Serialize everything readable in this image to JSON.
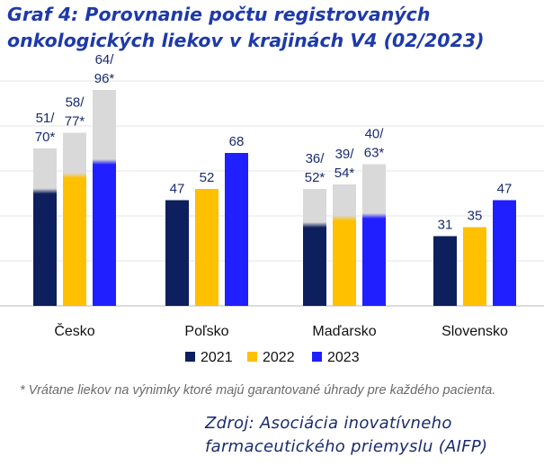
{
  "title": {
    "line1": "Graf 4: Porovnanie počtu registrovaných",
    "line2": "onkologických liekov v krajinách V4 (02/2023)"
  },
  "chart_data": {
    "type": "bar",
    "categories": [
      "Česko",
      "Poľsko",
      "Maďarsko",
      "Slovensko"
    ],
    "ylim": [
      0,
      100
    ],
    "grid": true,
    "legend_position": "bottom",
    "series": [
      {
        "name": "2021",
        "color": "#0d1f5c",
        "values": [
          51,
          47,
          36,
          31
        ],
        "totals": [
          70,
          null,
          52,
          null
        ],
        "labels": [
          [
            "51/",
            "70*"
          ],
          [
            "47"
          ],
          [
            "36/",
            "52*"
          ],
          [
            "31"
          ]
        ]
      },
      {
        "name": "2022",
        "color": "#ffc000",
        "values": [
          58,
          52,
          39,
          35
        ],
        "totals": [
          77,
          null,
          54,
          null
        ],
        "labels": [
          [
            "58/",
            "77*"
          ],
          [
            "52"
          ],
          [
            "39/",
            "54*"
          ],
          [
            "35"
          ]
        ]
      },
      {
        "name": "2023",
        "color": "#1f1fff",
        "values": [
          64,
          68,
          40,
          47
        ],
        "totals": [
          96,
          null,
          63,
          null
        ],
        "labels": [
          [
            "64/",
            "96*"
          ],
          [
            "68"
          ],
          [
            "40/",
            "63*"
          ],
          [
            "47"
          ]
        ]
      }
    ],
    "extra_color": "#d9d9d9"
  },
  "footnote": "* Vrátane liekov na výnimky ktoré majú garantované úhrady pre každého pacienta.",
  "source": {
    "line1": "Zdroj: Asociácia inovatívneho",
    "line2": "farmaceutického priemyslu (AIFP)"
  }
}
